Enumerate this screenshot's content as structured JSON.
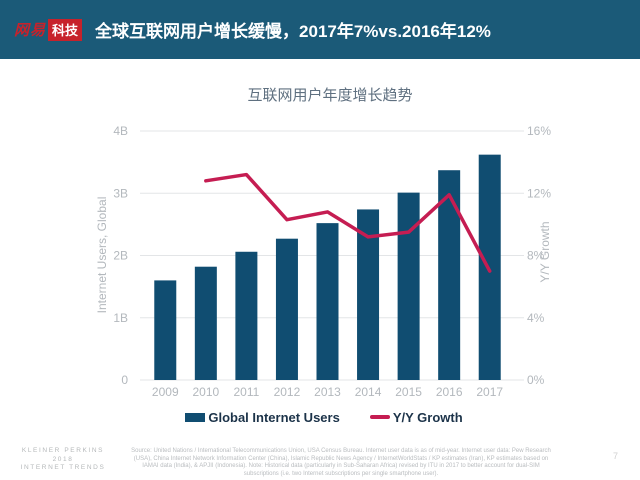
{
  "header": {
    "logo_netease": "网易",
    "logo_tech": "科技",
    "title": "全球互联网用户增长缓慢，2017年7%vs.2016年12%",
    "bg_color": "#1b5a78",
    "logo_red": "#c7222b"
  },
  "chart_data": {
    "type": "bar+line",
    "title": "互联网用户年度增长趋势",
    "categories": [
      "2009",
      "2010",
      "2011",
      "2012",
      "2013",
      "2014",
      "2015",
      "2016",
      "2017"
    ],
    "series": [
      {
        "name": "Global Internet Users",
        "type": "bar",
        "axis": "left",
        "unit": "B",
        "values": [
          1.6,
          1.82,
          2.06,
          2.27,
          2.52,
          2.74,
          3.01,
          3.37,
          3.62
        ],
        "color": "#104d71"
      },
      {
        "name": "Y/Y Growth",
        "type": "line",
        "axis": "right",
        "unit": "%",
        "values": [
          null,
          12.8,
          13.2,
          10.3,
          10.8,
          9.2,
          9.5,
          11.9,
          7.0
        ],
        "color": "#c51d52"
      }
    ],
    "left_axis": {
      "label": "Internet Users, Global",
      "ticks": [
        "0",
        "1B",
        "2B",
        "3B",
        "4B"
      ],
      "range": [
        0,
        4
      ]
    },
    "right_axis": {
      "label": "Y/Y Growth",
      "ticks": [
        "0%",
        "4%",
        "8%",
        "12%",
        "16%"
      ],
      "range": [
        0,
        16
      ]
    },
    "grid": true,
    "legend_position": "bottom",
    "tick_color": "#b3b8bd",
    "grid_color": "#e3e5e7"
  },
  "footer": {
    "brand_lines": [
      "KLEINER PERKINS",
      "2018",
      "INTERNET TRENDS"
    ],
    "source_text": "Source: United Nations / International Telecommunications Union, USA Census Bureau. Internet user data is as of mid-year. Internet user data: Pew Research (USA), China Internet Network Information Center (China), Islamic Republic News Agency / InternetWorldStats / KP estimates (Iran), KP estimates based on IAMAI data (India), & APJII (Indonesia). Note: Historical data (particularly in Sub-Saharan Africa) revised by ITU in 2017 to better account for dual-SIM subscriptions (i.e. two Internet subscriptions per single smartphone user).",
    "page_number": "7"
  }
}
